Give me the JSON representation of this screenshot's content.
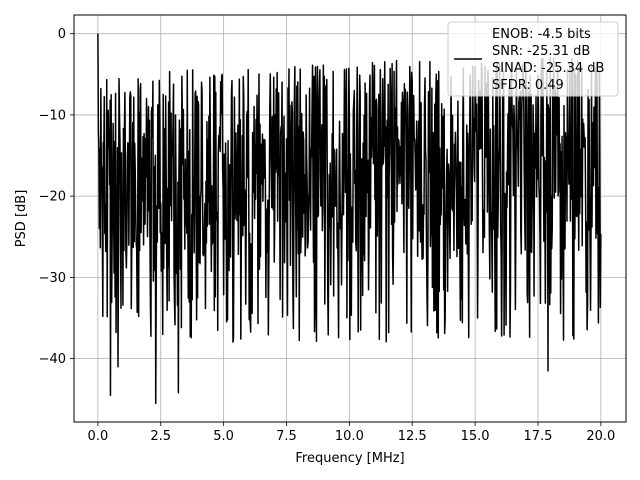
{
  "chart_data": {
    "type": "line",
    "title": "",
    "xlabel": "Frequency [MHz]",
    "ylabel": "PSD [dB]",
    "xlim": [
      -0.95,
      21.0
    ],
    "ylim": [
      -47.8,
      2.3
    ],
    "xticks": [
      0.0,
      2.5,
      5.0,
      7.5,
      10.0,
      12.5,
      15.0,
      17.5,
      20.0
    ],
    "xtick_labels": [
      "0.0",
      "2.5",
      "5.0",
      "7.5",
      "10.0",
      "12.5",
      "15.0",
      "17.5",
      "20.0"
    ],
    "yticks": [
      0,
      -10,
      -20,
      -30,
      -40
    ],
    "ytick_labels": [
      "0",
      "−10",
      "−20",
      "−30",
      "−40"
    ],
    "grid": true,
    "legend_position": "top-right",
    "series": [
      {
        "color": "#000000",
        "x_start": 0.0,
        "x_end": 20.0,
        "points": 1025,
        "peak": {
          "x": 0.0,
          "y": 0.0
        },
        "typical_range_db": [
          -30,
          -5
        ],
        "noise_floor_low_db": -45.5,
        "lowest_points": [
          {
            "x": 2.3,
            "y": -45.5
          },
          {
            "x": 0.5,
            "y": -44.5
          },
          {
            "x": 3.2,
            "y": -44.2
          },
          {
            "x": 17.9,
            "y": -41.5
          },
          {
            "x": 0.8,
            "y": -41.0
          }
        ]
      }
    ]
  },
  "legend": {
    "lines": [
      "ENOB: -4.5 bits",
      "SNR: -25.31 dB",
      "SINAD: -25.34 dB",
      "SFDR: 0.49"
    ]
  },
  "colors": {
    "line": "#000000",
    "grid": "#b0b0b0",
    "axes": "#000000",
    "legend_border": "#cccccc"
  }
}
